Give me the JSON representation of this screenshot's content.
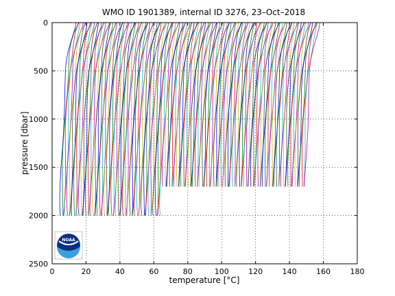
{
  "chart_data": {
    "type": "line",
    "title": "WMO ID 1901389, internal ID 3276, 23–Oct–2018",
    "xlabel": "temperature",
    "xlabel_unit": "[°C]",
    "ylabel": "pressure [dbar]",
    "xlim": [
      0,
      180
    ],
    "ylim": [
      2500,
      0
    ],
    "y_reversed": true,
    "grid": true,
    "x_ticks": [
      "0",
      "20",
      "40",
      "60",
      "80",
      "100",
      "120",
      "140",
      "160",
      "180"
    ],
    "y_ticks": [
      "0",
      "500",
      "1000",
      "1500",
      "2000",
      "2500"
    ],
    "series_note": "Waterfall of successive temperature profiles, each offset ~1 °C to the right",
    "profile_count": 145,
    "profile_template": {
      "pressure": [
        0,
        50,
        100,
        200,
        300,
        400,
        500,
        700,
        900,
        1100,
        1300,
        1500,
        1700,
        1900,
        2000
      ],
      "temperature_anomaly": [
        10.0,
        9.2,
        8.2,
        6.8,
        5.7,
        4.9,
        4.3,
        3.5,
        2.8,
        2.3,
        1.9,
        1.5,
        1.2,
        0.9,
        0.8
      ]
    },
    "start_offset": 4,
    "offset_step": 1.0,
    "palette": [
      "#0000ff",
      "#008000",
      "#ff0000",
      "#00bfbf",
      "#bf00bf",
      "#bfbf00",
      "#404040"
    ]
  },
  "logo": {
    "text": "NOAA"
  }
}
